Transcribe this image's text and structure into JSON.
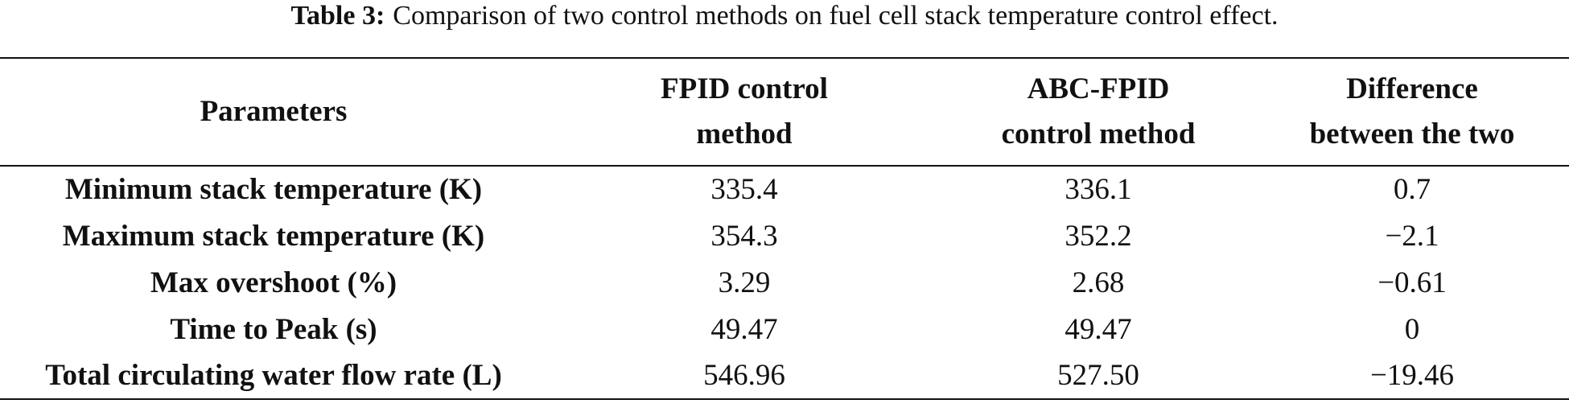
{
  "caption": {
    "label": "Table 3:",
    "text": "Comparison of two control methods on fuel cell stack temperature control effect."
  },
  "table": {
    "header": [
      [
        "Parameters"
      ],
      [
        "FPID control",
        "method"
      ],
      [
        "ABC-FPID",
        "control method"
      ],
      [
        "Difference",
        "between the two"
      ]
    ],
    "rows": [
      [
        "Minimum stack temperature (K)",
        "335.4",
        "336.1",
        "0.7"
      ],
      [
        "Maximum stack temperature (K)",
        "354.3",
        "352.2",
        "−2.1"
      ],
      [
        "Max overshoot (%)",
        "3.29",
        "2.68",
        "−0.61"
      ],
      [
        "Time to Peak (s)",
        "49.47",
        "49.47",
        "0"
      ],
      [
        "Total circulating water flow rate (L)",
        "546.96",
        "527.50",
        "−19.46"
      ]
    ]
  }
}
